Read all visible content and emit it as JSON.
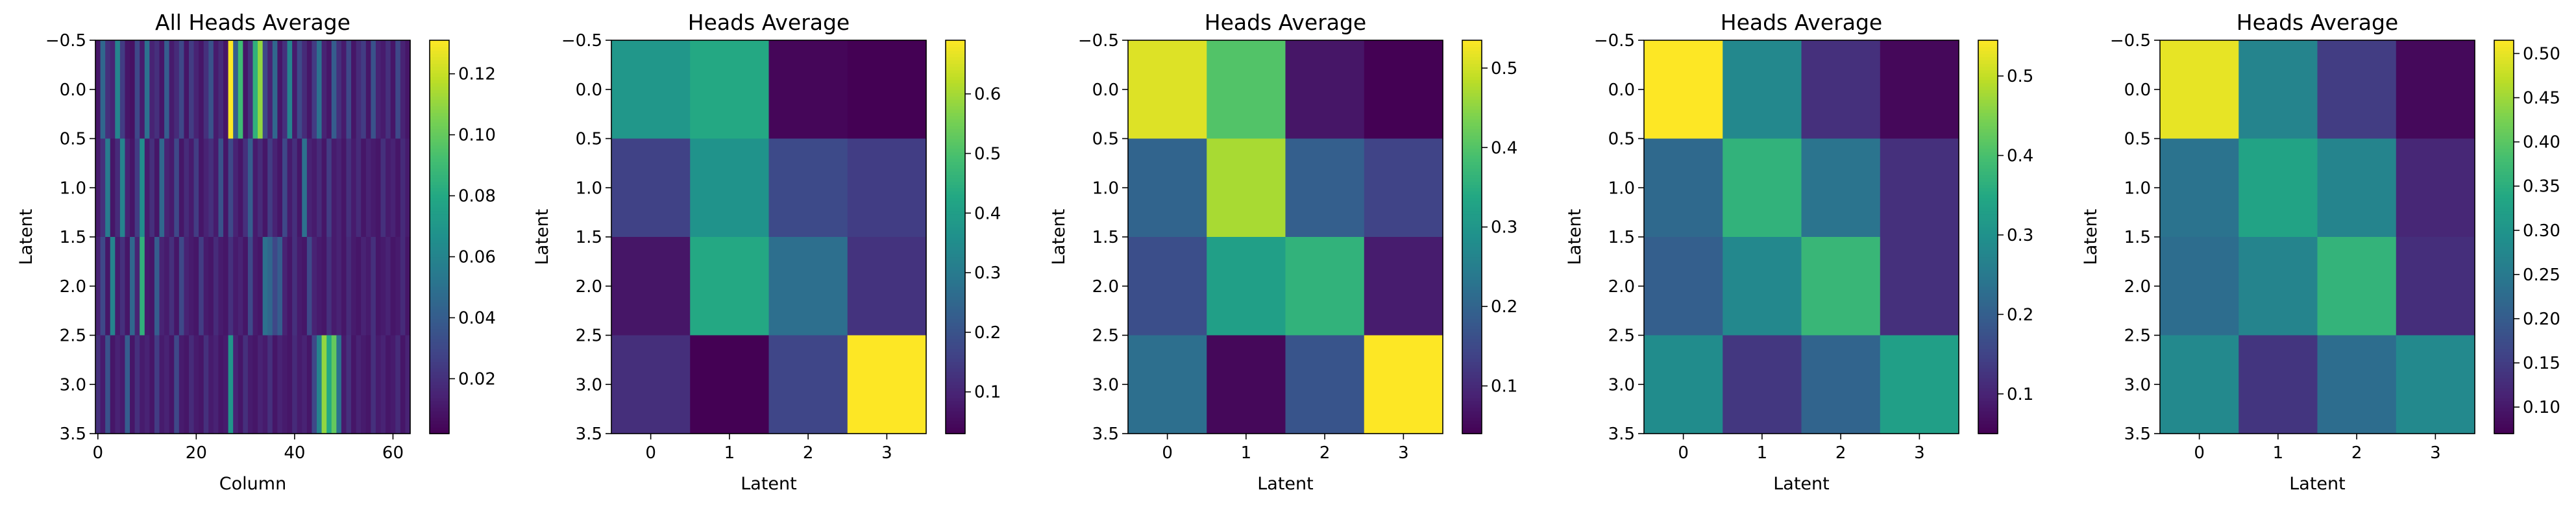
{
  "figure": {
    "background": "#ffffff",
    "colormap": "viridis"
  },
  "chart_data": [
    {
      "type": "heatmap",
      "title": "All Heads Average",
      "xlabel": "Column",
      "ylabel": "Latent",
      "xlim": [
        -0.5,
        63.5
      ],
      "ylim": [
        3.5,
        -0.5
      ],
      "xticks": [
        0,
        20,
        40,
        60
      ],
      "yticks": [
        -0.5,
        0.0,
        0.5,
        1.0,
        1.5,
        2.0,
        2.5,
        3.0,
        3.5
      ],
      "colorbar": {
        "min": 0.002,
        "max": 0.131,
        "ticks": [
          0.02,
          0.04,
          0.06,
          0.08,
          0.1,
          0.12
        ],
        "tick_labels": [
          "0.02",
          "0.04",
          "0.06",
          "0.08",
          "0.10",
          "0.12"
        ]
      },
      "z": [
        [
          0.01,
          0.045,
          0.02,
          0.015,
          0.06,
          0.025,
          0.01,
          0.008,
          0.03,
          0.012,
          0.05,
          0.015,
          0.02,
          0.01,
          0.04,
          0.012,
          0.018,
          0.03,
          0.01,
          0.025,
          0.015,
          0.01,
          0.02,
          0.035,
          0.012,
          0.018,
          0.01,
          0.131,
          0.04,
          0.09,
          0.01,
          0.02,
          0.085,
          0.11,
          0.03,
          0.015,
          0.045,
          0.01,
          0.02,
          0.06,
          0.012,
          0.03,
          0.018,
          0.01,
          0.025,
          0.05,
          0.015,
          0.01,
          0.04,
          0.02,
          0.012,
          0.03,
          0.01,
          0.018,
          0.025,
          0.01,
          0.035,
          0.015,
          0.012,
          0.02,
          0.01,
          0.03,
          0.015,
          0.01
        ],
        [
          0.012,
          0.02,
          0.055,
          0.01,
          0.018,
          0.06,
          0.015,
          0.01,
          0.025,
          0.065,
          0.012,
          0.02,
          0.01,
          0.045,
          0.015,
          0.012,
          0.03,
          0.01,
          0.018,
          0.012,
          0.025,
          0.01,
          0.015,
          0.02,
          0.012,
          0.035,
          0.01,
          0.03,
          0.015,
          0.01,
          0.02,
          0.04,
          0.012,
          0.018,
          0.01,
          0.025,
          0.015,
          0.01,
          0.03,
          0.012,
          0.02,
          0.01,
          0.05,
          0.015,
          0.012,
          0.018,
          0.01,
          0.025,
          0.012,
          0.015,
          0.01,
          0.02,
          0.012,
          0.018,
          0.01,
          0.015,
          0.012,
          0.01,
          0.02,
          0.012,
          0.015,
          0.01,
          0.018,
          0.012
        ],
        [
          0.015,
          0.03,
          0.01,
          0.06,
          0.012,
          0.02,
          0.01,
          0.045,
          0.015,
          0.085,
          0.012,
          0.01,
          0.04,
          0.015,
          0.012,
          0.02,
          0.01,
          0.03,
          0.015,
          0.012,
          0.01,
          0.025,
          0.012,
          0.01,
          0.018,
          0.012,
          0.01,
          0.02,
          0.012,
          0.015,
          0.01,
          0.03,
          0.012,
          0.01,
          0.05,
          0.045,
          0.03,
          0.04,
          0.015,
          0.01,
          0.02,
          0.012,
          0.01,
          0.03,
          0.015,
          0.012,
          0.01,
          0.02,
          0.012,
          0.015,
          0.01,
          0.018,
          0.012,
          0.01,
          0.015,
          0.012,
          0.02,
          0.01,
          0.012,
          0.015,
          0.01,
          0.012,
          0.018,
          0.01
        ],
        [
          0.02,
          0.012,
          0.035,
          0.01,
          0.015,
          0.012,
          0.04,
          0.01,
          0.02,
          0.012,
          0.015,
          0.01,
          0.025,
          0.012,
          0.015,
          0.01,
          0.03,
          0.012,
          0.01,
          0.018,
          0.012,
          0.01,
          0.02,
          0.012,
          0.015,
          0.01,
          0.012,
          0.07,
          0.015,
          0.01,
          0.02,
          0.012,
          0.01,
          0.015,
          0.012,
          0.02,
          0.01,
          0.015,
          0.012,
          0.01,
          0.018,
          0.012,
          0.015,
          0.01,
          0.03,
          0.06,
          0.11,
          0.08,
          0.1,
          0.05,
          0.012,
          0.02,
          0.01,
          0.015,
          0.012,
          0.01,
          0.02,
          0.012,
          0.015,
          0.01,
          0.012,
          0.018,
          0.01,
          0.015
        ]
      ]
    },
    {
      "type": "heatmap",
      "title": "Heads Average",
      "xlabel": "Latent",
      "ylabel": "Latent",
      "xlim": [
        -0.5,
        3.5
      ],
      "ylim": [
        3.5,
        -0.5
      ],
      "xticks": [
        0,
        1,
        2,
        3
      ],
      "yticks": [
        -0.5,
        0.0,
        0.5,
        1.0,
        1.5,
        2.0,
        2.5,
        3.0,
        3.5
      ],
      "colorbar": {
        "min": 0.03,
        "max": 0.69,
        "ticks": [
          0.1,
          0.2,
          0.3,
          0.4,
          0.5,
          0.6
        ],
        "tick_labels": [
          "0.1",
          "0.2",
          "0.3",
          "0.4",
          "0.5",
          "0.6"
        ]
      },
      "z": [
        [
          0.38,
          0.43,
          0.04,
          0.03
        ],
        [
          0.16,
          0.37,
          0.18,
          0.15
        ],
        [
          0.07,
          0.43,
          0.27,
          0.13
        ],
        [
          0.12,
          0.03,
          0.17,
          0.69
        ]
      ]
    },
    {
      "type": "heatmap",
      "title": "Heads Average",
      "xlabel": "Latent",
      "ylabel": "Latent",
      "xlim": [
        -0.5,
        3.5
      ],
      "ylim": [
        3.5,
        -0.5
      ],
      "xticks": [
        0,
        1,
        2,
        3
      ],
      "yticks": [
        -0.5,
        0.0,
        0.5,
        1.0,
        1.5,
        2.0,
        2.5,
        3.0,
        3.5
      ],
      "colorbar": {
        "min": 0.04,
        "max": 0.535,
        "ticks": [
          0.1,
          0.2,
          0.3,
          0.4,
          0.5
        ],
        "tick_labels": [
          "0.1",
          "0.2",
          "0.3",
          "0.4",
          "0.5"
        ]
      },
      "z": [
        [
          0.51,
          0.4,
          0.07,
          0.04
        ],
        [
          0.2,
          0.47,
          0.19,
          0.14
        ],
        [
          0.16,
          0.32,
          0.36,
          0.08
        ],
        [
          0.22,
          0.05,
          0.17,
          0.535
        ]
      ]
    },
    {
      "type": "heatmap",
      "title": "Heads Average",
      "xlabel": "Latent",
      "ylabel": "Latent",
      "xlim": [
        -0.5,
        3.5
      ],
      "ylim": [
        3.5,
        -0.5
      ],
      "xticks": [
        0,
        1,
        2,
        3
      ],
      "yticks": [
        -0.5,
        0.0,
        0.5,
        1.0,
        1.5,
        2.0,
        2.5,
        3.0,
        3.5
      ],
      "colorbar": {
        "min": 0.05,
        "max": 0.545,
        "ticks": [
          0.1,
          0.2,
          0.3,
          0.4,
          0.5
        ],
        "tick_labels": [
          "0.1",
          "0.2",
          "0.3",
          "0.4",
          "0.5"
        ]
      },
      "z": [
        [
          0.545,
          0.28,
          0.12,
          0.06
        ],
        [
          0.22,
          0.37,
          0.24,
          0.12
        ],
        [
          0.2,
          0.28,
          0.38,
          0.12
        ],
        [
          0.29,
          0.13,
          0.21,
          0.33
        ]
      ]
    },
    {
      "type": "heatmap",
      "title": "Heads Average",
      "xlabel": "Latent",
      "ylabel": "Latent",
      "xlim": [
        -0.5,
        3.5
      ],
      "ylim": [
        3.5,
        -0.5
      ],
      "xticks": [
        0,
        1,
        2,
        3
      ],
      "yticks": [
        -0.5,
        0.0,
        0.5,
        1.0,
        1.5,
        2.0,
        2.5,
        3.0,
        3.5
      ],
      "colorbar": {
        "min": 0.07,
        "max": 0.515,
        "ticks": [
          0.1,
          0.15,
          0.2,
          0.25,
          0.3,
          0.35,
          0.4,
          0.45,
          0.5
        ],
        "tick_labels": [
          "0.10",
          "0.15",
          "0.20",
          "0.25",
          "0.30",
          "0.35",
          "0.40",
          "0.45",
          "0.50"
        ]
      },
      "z": [
        [
          0.5,
          0.27,
          0.15,
          0.08
        ],
        [
          0.24,
          0.33,
          0.27,
          0.12
        ],
        [
          0.23,
          0.27,
          0.36,
          0.13
        ],
        [
          0.28,
          0.14,
          0.23,
          0.28
        ]
      ]
    }
  ]
}
